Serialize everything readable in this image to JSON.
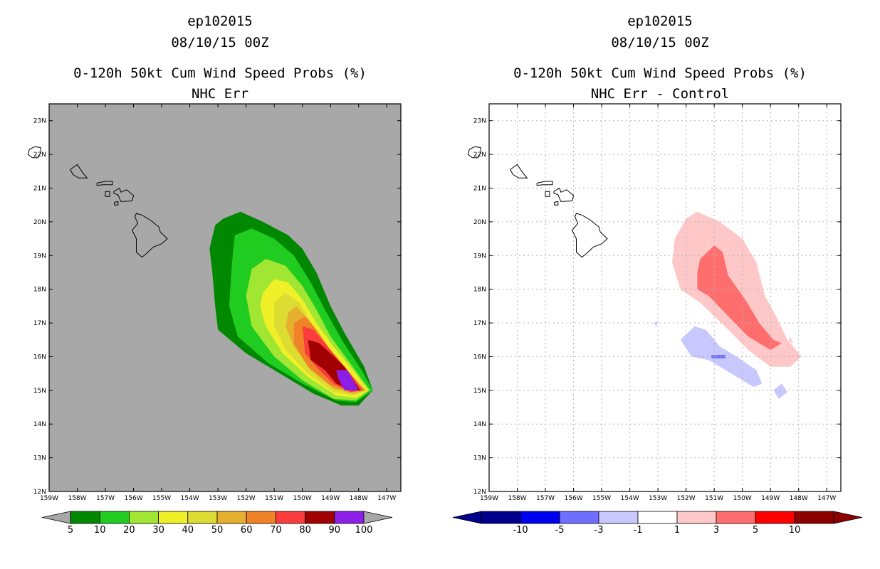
{
  "left_panel": {
    "title_line1": "ep102015",
    "title_line2": "08/10/15 00Z",
    "title_line3": "0-120h 50kt Cum Wind Speed Probs (%)",
    "title_line4": "NHC Err",
    "background_color": "#a8a8a8",
    "colorbar": {
      "labels": [
        "5",
        "10",
        "20",
        "30",
        "40",
        "50",
        "60",
        "70",
        "80",
        "90",
        "100"
      ],
      "colors": [
        "#008800",
        "#20cc20",
        "#a0e632",
        "#f0f028",
        "#dcdc32",
        "#e6af2d",
        "#f08228",
        "#fa3c3c",
        "#a00000",
        "#8c1ee6"
      ]
    }
  },
  "right_panel": {
    "title_line1": "ep102015",
    "title_line2": "08/10/15 00Z",
    "title_line3": "0-120h 50kt Cum Wind Speed Probs (%)",
    "title_line4": "NHC Err - Control",
    "background_color": "#ffffff",
    "colorbar": {
      "labels": [
        "-10",
        "-5",
        "-3",
        "-1",
        "1",
        "3",
        "5",
        "10"
      ],
      "colors": [
        "#00008c",
        "#0000f0",
        "#6e6eff",
        "#c8c8ff",
        "#ffffff",
        "#ffc8c8",
        "#ff6e6e",
        "#ff0000",
        "#8c0000"
      ]
    }
  },
  "map": {
    "lat_labels": [
      "12N",
      "13N",
      "14N",
      "15N",
      "16N",
      "17N",
      "18N",
      "19N",
      "20N",
      "21N",
      "22N",
      "23N"
    ],
    "lon_labels": [
      "159W",
      "158W",
      "157W",
      "156W",
      "155W",
      "154W",
      "153W",
      "152W",
      "151W",
      "150W",
      "149W",
      "148W",
      "147W"
    ],
    "lat_range": [
      12,
      23.5
    ],
    "lon_range": [
      -159,
      -146.5
    ],
    "islands": [
      {
        "name": "Kauai",
        "coords": [
          [
            -159.7,
            22.15
          ],
          [
            -159.5,
            22.23
          ],
          [
            -159.3,
            22.2
          ],
          [
            -159.3,
            22.05
          ],
          [
            -159.4,
            21.9
          ],
          [
            -159.6,
            21.9
          ],
          [
            -159.75,
            22.0
          ]
        ]
      },
      {
        "name": "Oahu",
        "coords": [
          [
            -158.25,
            21.55
          ],
          [
            -158.0,
            21.7
          ],
          [
            -157.8,
            21.45
          ],
          [
            -157.65,
            21.3
          ],
          [
            -157.95,
            21.3
          ],
          [
            -158.15,
            21.4
          ]
        ]
      },
      {
        "name": "Molokai",
        "coords": [
          [
            -157.3,
            21.15
          ],
          [
            -157.0,
            21.2
          ],
          [
            -156.75,
            21.2
          ],
          [
            -156.75,
            21.1
          ],
          [
            -157.1,
            21.1
          ],
          [
            -157.3,
            21.08
          ]
        ]
      },
      {
        "name": "Maui",
        "coords": [
          [
            -156.7,
            20.9
          ],
          [
            -156.5,
            21.0
          ],
          [
            -156.45,
            20.88
          ],
          [
            -156.25,
            20.95
          ],
          [
            -156.0,
            20.78
          ],
          [
            -156.05,
            20.62
          ],
          [
            -156.45,
            20.6
          ],
          [
            -156.55,
            20.8
          ],
          [
            -156.7,
            20.85
          ]
        ]
      },
      {
        "name": "Lanai",
        "coords": [
          [
            -157.0,
            20.9
          ],
          [
            -156.85,
            20.9
          ],
          [
            -156.85,
            20.75
          ],
          [
            -157.0,
            20.75
          ]
        ]
      },
      {
        "name": "Kahoolawe",
        "coords": [
          [
            -156.68,
            20.58
          ],
          [
            -156.55,
            20.6
          ],
          [
            -156.55,
            20.5
          ],
          [
            -156.68,
            20.5
          ]
        ]
      },
      {
        "name": "Hawaii",
        "coords": [
          [
            -155.9,
            20.25
          ],
          [
            -155.7,
            20.2
          ],
          [
            -155.4,
            20.05
          ],
          [
            -155.1,
            19.85
          ],
          [
            -155.05,
            19.7
          ],
          [
            -154.8,
            19.5
          ],
          [
            -155.0,
            19.35
          ],
          [
            -155.3,
            19.25
          ],
          [
            -155.55,
            19.05
          ],
          [
            -155.7,
            18.95
          ],
          [
            -155.9,
            19.1
          ],
          [
            -155.9,
            19.5
          ],
          [
            -156.05,
            19.75
          ],
          [
            -155.85,
            19.95
          ],
          [
            -155.95,
            20.15
          ]
        ]
      }
    ]
  },
  "left_contours": [
    {
      "level": "5-10",
      "color": "#008800",
      "coords": [
        [
          -153.1,
          19.9
        ],
        [
          -152.8,
          20.1
        ],
        [
          -152.2,
          20.3
        ],
        [
          -151.4,
          20.0
        ],
        [
          -150.5,
          19.6
        ],
        [
          -150.0,
          19.2
        ],
        [
          -149.5,
          18.5
        ],
        [
          -149.0,
          17.5
        ],
        [
          -148.5,
          16.7
        ],
        [
          -147.8,
          15.7
        ],
        [
          -147.5,
          15.0
        ],
        [
          -148.0,
          14.55
        ],
        [
          -148.6,
          14.55
        ],
        [
          -149.6,
          14.9
        ],
        [
          -150.8,
          15.5
        ],
        [
          -152.0,
          16.1
        ],
        [
          -153.0,
          16.8
        ],
        [
          -153.1,
          17.5
        ],
        [
          -153.2,
          18.5
        ],
        [
          -153.3,
          19.2
        ]
      ]
    },
    {
      "level": "10-20",
      "color": "#20cc20",
      "coords": [
        [
          -152.4,
          19.6
        ],
        [
          -151.8,
          19.8
        ],
        [
          -151.0,
          19.5
        ],
        [
          -150.3,
          19.0
        ],
        [
          -149.7,
          18.2
        ],
        [
          -149.2,
          17.4
        ],
        [
          -148.6,
          16.5
        ],
        [
          -147.9,
          15.6
        ],
        [
          -147.5,
          15.0
        ],
        [
          -148.1,
          14.65
        ],
        [
          -148.8,
          14.7
        ],
        [
          -150.0,
          15.2
        ],
        [
          -151.2,
          15.8
        ],
        [
          -152.3,
          16.6
        ],
        [
          -152.6,
          17.5
        ],
        [
          -152.5,
          18.8
        ]
      ]
    },
    {
      "level": "20-30",
      "color": "#a0e632",
      "coords": [
        [
          -151.8,
          18.6
        ],
        [
          -151.3,
          18.9
        ],
        [
          -150.6,
          18.7
        ],
        [
          -150.0,
          18.1
        ],
        [
          -149.5,
          17.4
        ],
        [
          -149.0,
          16.6
        ],
        [
          -148.3,
          15.8
        ],
        [
          -147.6,
          15.0
        ],
        [
          -148.1,
          14.7
        ],
        [
          -148.9,
          14.75
        ],
        [
          -150.0,
          15.3
        ],
        [
          -151.0,
          16.0
        ],
        [
          -151.8,
          16.9
        ],
        [
          -152.0,
          17.8
        ]
      ]
    },
    {
      "level": "30-40",
      "color": "#f0f028",
      "coords": [
        [
          -151.4,
          17.9
        ],
        [
          -151.0,
          18.3
        ],
        [
          -150.5,
          18.2
        ],
        [
          -150.0,
          17.7
        ],
        [
          -149.5,
          17.0
        ],
        [
          -148.9,
          16.3
        ],
        [
          -148.2,
          15.6
        ],
        [
          -147.65,
          15.0
        ],
        [
          -148.1,
          14.78
        ],
        [
          -148.8,
          14.85
        ],
        [
          -149.8,
          15.4
        ],
        [
          -150.7,
          16.1
        ],
        [
          -151.3,
          16.9
        ],
        [
          -151.5,
          17.5
        ]
      ]
    },
    {
      "level": "40-50",
      "color": "#dcdc32",
      "coords": [
        [
          -151.0,
          17.6
        ],
        [
          -150.6,
          17.9
        ],
        [
          -150.1,
          17.6
        ],
        [
          -149.6,
          16.9
        ],
        [
          -149.0,
          16.2
        ],
        [
          -148.3,
          15.5
        ],
        [
          -147.7,
          15.0
        ],
        [
          -148.15,
          14.85
        ],
        [
          -148.9,
          14.95
        ],
        [
          -149.8,
          15.5
        ],
        [
          -150.6,
          16.2
        ],
        [
          -151.0,
          16.9
        ]
      ]
    },
    {
      "level": "50-60",
      "color": "#e6af2d",
      "coords": [
        [
          -150.5,
          17.3
        ],
        [
          -150.2,
          17.5
        ],
        [
          -149.8,
          17.1
        ],
        [
          -149.3,
          16.5
        ],
        [
          -148.6,
          15.8
        ],
        [
          -148.0,
          15.2
        ],
        [
          -147.75,
          15.0
        ],
        [
          -148.2,
          14.9
        ],
        [
          -148.9,
          15.05
        ],
        [
          -149.7,
          15.6
        ],
        [
          -150.3,
          16.3
        ],
        [
          -150.6,
          16.9
        ]
      ]
    },
    {
      "level": "60-70",
      "color": "#f08228",
      "coords": [
        [
          -150.3,
          17.0
        ],
        [
          -149.9,
          17.2
        ],
        [
          -149.5,
          16.8
        ],
        [
          -149.0,
          16.2
        ],
        [
          -148.4,
          15.6
        ],
        [
          -147.8,
          15.0
        ],
        [
          -148.25,
          14.95
        ],
        [
          -149.0,
          15.15
        ],
        [
          -149.8,
          15.7
        ],
        [
          -150.3,
          16.4
        ]
      ]
    },
    {
      "level": "70-80",
      "color": "#fa3c3c",
      "coords": [
        [
          -150.0,
          16.9
        ],
        [
          -149.6,
          16.8
        ],
        [
          -149.0,
          16.2
        ],
        [
          -148.4,
          15.6
        ],
        [
          -147.85,
          15.0
        ],
        [
          -148.3,
          14.95
        ],
        [
          -148.9,
          15.2
        ],
        [
          -149.4,
          15.6
        ],
        [
          -149.9,
          16.1
        ]
      ]
    },
    {
      "level": "80-90",
      "color": "#a00000",
      "coords": [
        [
          -149.8,
          16.5
        ],
        [
          -149.4,
          16.4
        ],
        [
          -149.0,
          16.1
        ],
        [
          -148.5,
          15.7
        ],
        [
          -147.95,
          15.0
        ],
        [
          -148.3,
          15.0
        ],
        [
          -148.8,
          15.2
        ],
        [
          -149.2,
          15.6
        ],
        [
          -149.7,
          15.9
        ]
      ]
    },
    {
      "level": "90-100",
      "color": "#8c1ee6",
      "coords": [
        [
          -148.8,
          15.6
        ],
        [
          -148.4,
          15.6
        ],
        [
          -148.0,
          15.0
        ],
        [
          -148.5,
          15.0
        ],
        [
          -148.7,
          15.3
        ]
      ]
    }
  ],
  "right_contours": [
    {
      "level": "1-3",
      "color": "#ffc8c8",
      "coords": [
        [
          -152.0,
          20.1
        ],
        [
          -151.6,
          20.3
        ],
        [
          -150.8,
          20.0
        ],
        [
          -150.0,
          19.5
        ],
        [
          -149.5,
          18.8
        ],
        [
          -149.2,
          17.8
        ],
        [
          -148.8,
          17.2
        ],
        [
          -148.4,
          16.5
        ],
        [
          -147.9,
          16.0
        ],
        [
          -148.3,
          15.7
        ],
        [
          -149.0,
          15.7
        ],
        [
          -149.8,
          16.2
        ],
        [
          -150.5,
          16.8
        ],
        [
          -151.5,
          17.6
        ],
        [
          -152.2,
          18.0
        ],
        [
          -152.5,
          18.8
        ],
        [
          -152.4,
          19.5
        ]
      ]
    },
    {
      "level": "3-5",
      "color": "#ff6e6e",
      "coords": [
        [
          -151.5,
          18.9
        ],
        [
          -151.0,
          19.3
        ],
        [
          -150.7,
          19.1
        ],
        [
          -150.5,
          18.4
        ],
        [
          -149.9,
          17.7
        ],
        [
          -149.4,
          17.0
        ],
        [
          -148.9,
          16.5
        ],
        [
          -148.6,
          16.4
        ],
        [
          -149.0,
          16.2
        ],
        [
          -149.8,
          16.6
        ],
        [
          -150.5,
          17.2
        ],
        [
          -151.2,
          17.8
        ],
        [
          -151.6,
          18.0
        ],
        [
          -151.6,
          18.5
        ]
      ]
    },
    {
      "level": "1-3 small",
      "color": "#ffc8c8",
      "coords": [
        [
          -148.3,
          16.6
        ],
        [
          -148.2,
          16.4
        ],
        [
          -148.35,
          16.45
        ]
      ]
    },
    {
      "level": "-3--1",
      "color": "#c8c8ff",
      "coords": [
        [
          -152.2,
          16.5
        ],
        [
          -151.7,
          16.9
        ],
        [
          -151.3,
          16.8
        ],
        [
          -150.8,
          16.3
        ],
        [
          -150.2,
          16.0
        ],
        [
          -149.5,
          15.6
        ],
        [
          -149.3,
          15.2
        ],
        [
          -149.6,
          15.1
        ],
        [
          -150.4,
          15.5
        ],
        [
          -151.2,
          15.9
        ],
        [
          -151.8,
          16.0
        ]
      ]
    },
    {
      "level": "-3--1 small a",
      "color": "#c8c8ff",
      "coords": [
        [
          -148.9,
          15.0
        ],
        [
          -148.6,
          15.2
        ],
        [
          -148.4,
          14.95
        ],
        [
          -148.7,
          14.75
        ]
      ]
    },
    {
      "level": "-3--1 small b",
      "color": "#c8c8ff",
      "coords": [
        [
          -153.15,
          17.0
        ],
        [
          -153.0,
          17.05
        ],
        [
          -153.05,
          16.9
        ]
      ]
    },
    {
      "level": "-5--3",
      "color": "#6e6eff",
      "coords": [
        [
          -151.1,
          16.05
        ],
        [
          -150.6,
          16.05
        ],
        [
          -150.6,
          15.95
        ],
        [
          -151.1,
          15.95
        ]
      ]
    }
  ]
}
